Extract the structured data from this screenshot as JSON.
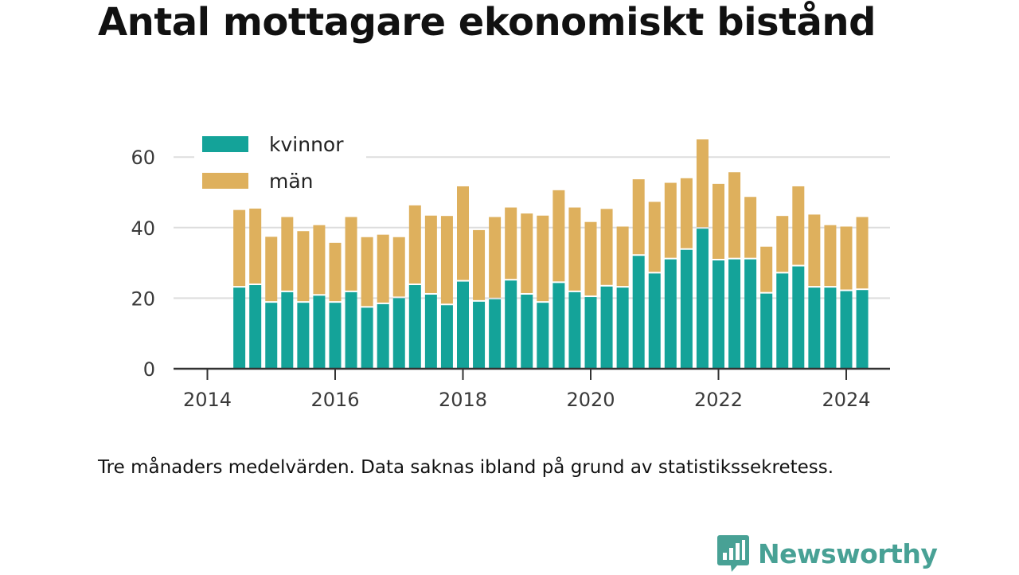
{
  "title": "Antal mottagare ekonomiskt bistånd",
  "footnote": "Tre månaders medelvärden. Data saknas ibland på grund av statistikssekretess.",
  "brand": {
    "name": "Newsworthy",
    "icon": "newsworthy-logo-icon",
    "color": "#48a195"
  },
  "colors": {
    "kvinnor": "#14a399",
    "man": "#deb05d",
    "grid": "#dddddd",
    "axis": "#333333"
  },
  "chart_data": {
    "type": "bar",
    "stacked": true,
    "title": "Antal mottagare ekonomiskt bistånd",
    "xlabel": "",
    "ylabel": "",
    "ylim": [
      0,
      70
    ],
    "yticks": [
      0,
      20,
      40,
      60
    ],
    "xticks": [
      "2014",
      "2016",
      "2018",
      "2020",
      "2022",
      "2024"
    ],
    "grid": true,
    "legend_position": "top-left",
    "x": [
      "2014-Q2",
      "2014-Q3",
      "2014-Q4",
      "2015-Q1",
      "2015-Q2",
      "2015-Q3",
      "2015-Q4",
      "2016-Q1",
      "2016-Q2",
      "2016-Q3",
      "2016-Q4",
      "2017-Q1",
      "2017-Q2",
      "2017-Q3",
      "2017-Q4",
      "2018-Q1",
      "2018-Q2",
      "2018-Q3",
      "2018-Q4",
      "2019-Q1",
      "2019-Q2",
      "2019-Q3",
      "2019-Q4",
      "2020-Q1",
      "2020-Q2",
      "2020-Q3",
      "2020-Q4",
      "2021-Q1",
      "2021-Q2",
      "2021-Q3",
      "2021-Q4",
      "2022-Q1",
      "2022-Q2",
      "2022-Q3",
      "2022-Q4",
      "2023-Q1",
      "2023-Q2",
      "2023-Q3",
      "2023-Q4",
      "2024-Q1"
    ],
    "series": [
      {
        "name": "kvinnor",
        "color": "#14a399",
        "values": [
          23,
          23.7,
          18.7,
          21.7,
          18.7,
          20.7,
          18.7,
          21.7,
          17.3,
          18.3,
          20,
          23.7,
          21,
          18,
          24.7,
          19,
          19.7,
          25,
          21,
          18.7,
          24.3,
          21.7,
          20.3,
          23.3,
          23,
          32,
          27,
          31,
          33.7,
          39.7,
          30.7,
          31,
          31,
          21.3,
          27,
          29,
          23,
          23,
          22,
          22.3
        ]
      },
      {
        "name": "män",
        "color": "#deb05d",
        "values": [
          22,
          21.7,
          18.7,
          21.3,
          20.3,
          20,
          17,
          21.3,
          20,
          19.7,
          17.3,
          22.6,
          22.4,
          25.3,
          27,
          20.3,
          23.3,
          20.7,
          23,
          24.7,
          26.3,
          24,
          21.3,
          22,
          17.3,
          21.7,
          20.3,
          21.7,
          20.3,
          25.3,
          21.7,
          24.7,
          17.7,
          13.3,
          16.3,
          22.7,
          20.7,
          17.7,
          18.3,
          20.7
        ]
      }
    ]
  }
}
